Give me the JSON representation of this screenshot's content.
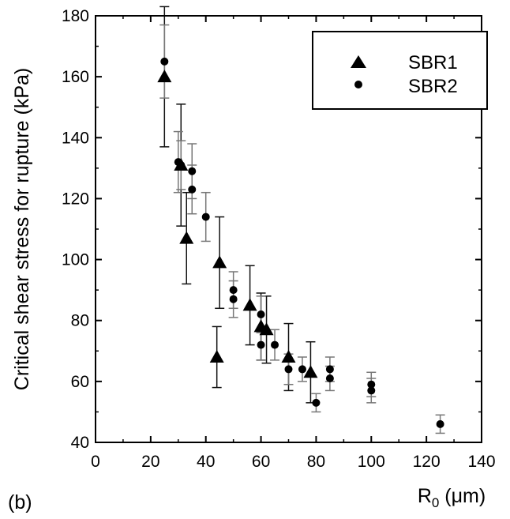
{
  "panel_label": "(b)",
  "chart_data": {
    "type": "scatter",
    "xlabel_main": "R",
    "xlabel_sub": "0",
    "xlabel_unit": " (μm)",
    "ylabel": "Critical shear stress for rupture (kPa)",
    "xlim": [
      0,
      140
    ],
    "ylim": [
      40,
      180
    ],
    "x_ticks": [
      "0",
      "20",
      "40",
      "60",
      "80",
      "100",
      "120",
      "140"
    ],
    "y_ticks": [
      "40",
      "60",
      "80",
      "100",
      "120",
      "140",
      "160",
      "180"
    ],
    "grid": false,
    "legend_position": "top-right",
    "series": [
      {
        "name": "SBR1",
        "marker": "triangle",
        "color": "#000000",
        "points": [
          {
            "x": 25,
            "y": 160,
            "err": 23
          },
          {
            "x": 31,
            "y": 131,
            "err": 20
          },
          {
            "x": 33,
            "y": 107,
            "err": 15
          },
          {
            "x": 44,
            "y": 68,
            "err": 10
          },
          {
            "x": 45,
            "y": 99,
            "err": 15
          },
          {
            "x": 56,
            "y": 85,
            "err": 13
          },
          {
            "x": 60,
            "y": 78,
            "err": 11
          },
          {
            "x": 62,
            "y": 77,
            "err": 11
          },
          {
            "x": 70,
            "y": 68,
            "err": 11
          },
          {
            "x": 78,
            "y": 63,
            "err": 10
          }
        ]
      },
      {
        "name": "SBR2",
        "marker": "circle",
        "color": "#000000",
        "points": [
          {
            "x": 25,
            "y": 165,
            "err": 12
          },
          {
            "x": 30,
            "y": 132,
            "err": 10
          },
          {
            "x": 31,
            "y": 131,
            "err": 8
          },
          {
            "x": 35,
            "y": 129,
            "err": 9
          },
          {
            "x": 35,
            "y": 123,
            "err": 8
          },
          {
            "x": 40,
            "y": 114,
            "err": 8
          },
          {
            "x": 50,
            "y": 90,
            "err": 6
          },
          {
            "x": 50,
            "y": 87,
            "err": 6
          },
          {
            "x": 60,
            "y": 82,
            "err": 6
          },
          {
            "x": 60,
            "y": 72,
            "err": 5
          },
          {
            "x": 65,
            "y": 72,
            "err": 5
          },
          {
            "x": 70,
            "y": 64,
            "err": 5
          },
          {
            "x": 75,
            "y": 64,
            "err": 4
          },
          {
            "x": 80,
            "y": 53,
            "err": 3
          },
          {
            "x": 85,
            "y": 64,
            "err": 4
          },
          {
            "x": 85,
            "y": 61,
            "err": 4
          },
          {
            "x": 100,
            "y": 59,
            "err": 4
          },
          {
            "x": 100,
            "y": 57,
            "err": 4
          },
          {
            "x": 125,
            "y": 46,
            "err": 3
          }
        ]
      }
    ]
  }
}
